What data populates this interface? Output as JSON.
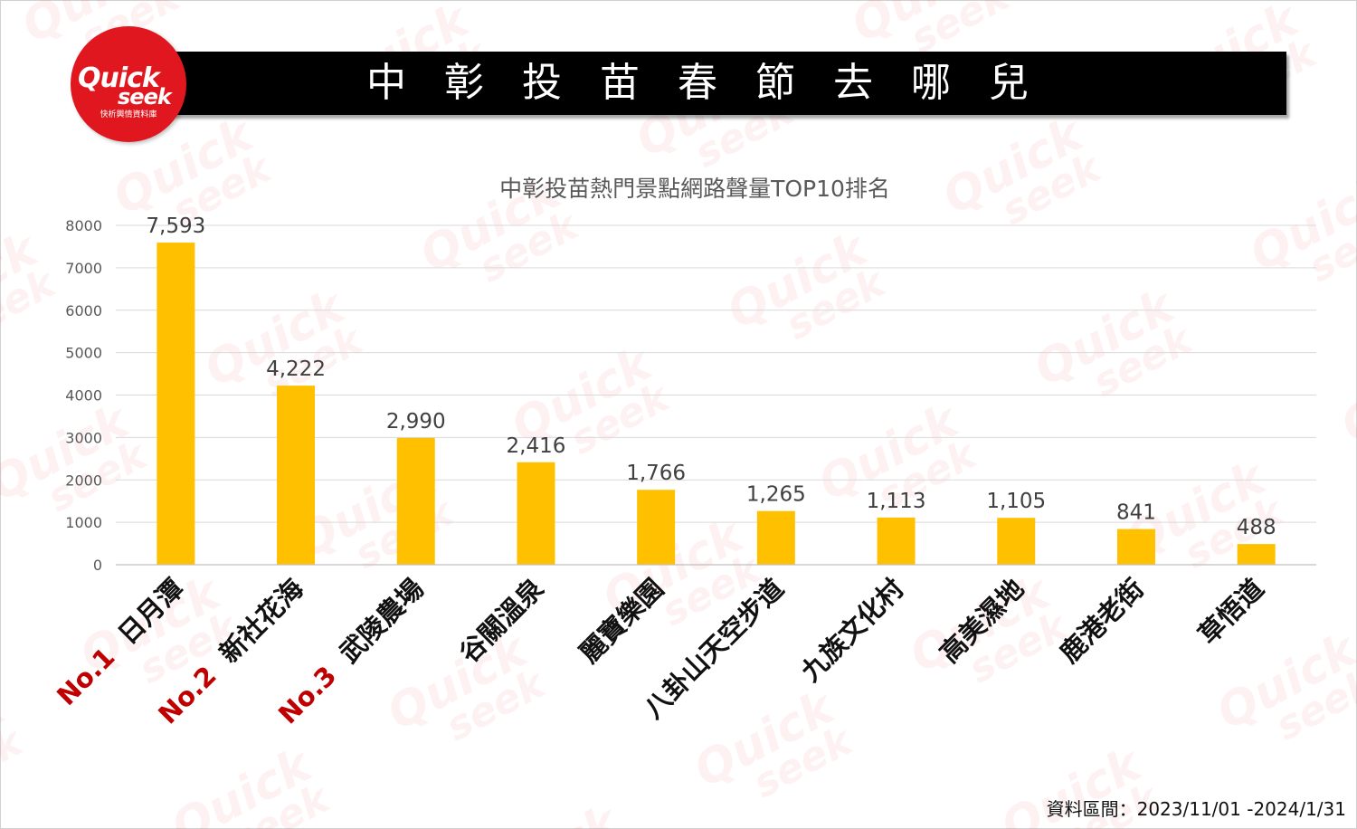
{
  "header": {
    "title": "中彰投苗春節去哪兒",
    "logo_text_1": "Quick",
    "logo_text_2": "seek",
    "logo_subtitle": "快析輿情資料庫"
  },
  "footer": {
    "date_range": "資料區間：2023/11/01 -2024/1/31"
  },
  "colors": {
    "bar": "#FFC000",
    "rank": "#C00000",
    "logo": "#E0171E",
    "title_bar": "#000000"
  },
  "chart_data": {
    "type": "bar",
    "title": "中彰投苗熱門景點網路聲量TOP10排名",
    "categories": [
      "日月潭",
      "新社花海",
      "武陵農場",
      "谷關溫泉",
      "麗寶樂園",
      "八卦山天空步道",
      "九族文化村",
      "高美濕地",
      "鹿港老街",
      "草悟道"
    ],
    "ranks": [
      "No.1",
      "No.2",
      "No.3",
      "",
      "",
      "",
      "",
      "",
      "",
      ""
    ],
    "values": [
      7593,
      4222,
      2990,
      2416,
      1766,
      1265,
      1113,
      1105,
      841,
      488
    ],
    "data_labels": [
      "7,593",
      "4,222",
      "2,990",
      "2,416",
      "1,766",
      "1,265",
      "1,113",
      "1,105",
      "841",
      "488"
    ],
    "ylim": [
      0,
      8000
    ],
    "yticks": [
      0,
      1000,
      2000,
      3000,
      4000,
      5000,
      6000,
      7000,
      8000
    ],
    "grid": true,
    "legend": "none"
  }
}
